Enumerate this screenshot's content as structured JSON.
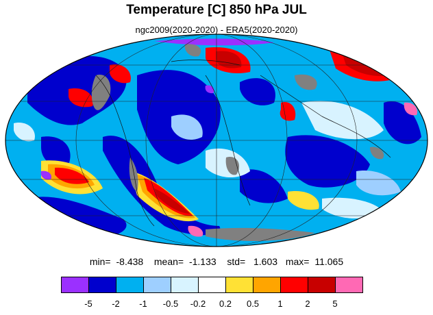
{
  "title": "Temperature [C] 850 hPa JUL",
  "subtitle": "ngc2009(2020-2020) - ERA5(2020-2020)",
  "stats": {
    "min_label": "min=",
    "min": "-8.438",
    "mean_label": "mean=",
    "mean": "-1.133",
    "std_label": "std=",
    "std": "1.603",
    "max_label": "max=",
    "max": "11.065"
  },
  "colorbar": {
    "colors": [
      "#9b30ff",
      "#0000cd",
      "#00b0f0",
      "#9ecfff",
      "#d8f3ff",
      "#ffffff",
      "#ffe135",
      "#ffa500",
      "#ff0000",
      "#c80000",
      "#ff69b4"
    ],
    "tick_labels": [
      "-5",
      "-2",
      "-1",
      "-0.5",
      "-0.2",
      "0.2",
      "0.5",
      "1",
      "2",
      "5"
    ]
  },
  "map": {
    "projection": "mollweide",
    "background_color": "#00b0f0",
    "missing_color": "#808080"
  }
}
